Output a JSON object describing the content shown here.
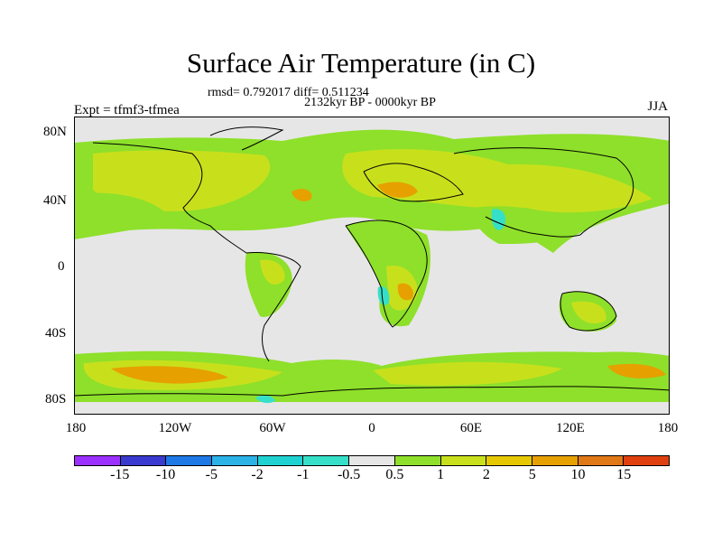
{
  "title": "Surface Air Temperature (in C)",
  "stats": "rmsd= 0.792017 diff= 0.511234",
  "period": "2132kyr BP - 0000kyr BP",
  "experiment": "Expt = tfmf3-tfmea",
  "season": "JJA",
  "lat_ticks": [
    "80N",
    "40N",
    "0",
    "40S",
    "80S"
  ],
  "lon_ticks": [
    "180",
    "120W",
    "60W",
    "0",
    "60E",
    "120E",
    "180"
  ],
  "colorbar": {
    "colors": [
      "#9b30ff",
      "#3a3ad0",
      "#1e78e6",
      "#2bb3e8",
      "#1fd2d2",
      "#36e0c8",
      "#e6e6e6",
      "#8ee02a",
      "#c8e01c",
      "#e6c800",
      "#e6a000",
      "#e07818",
      "#e04010"
    ],
    "labels": [
      "-15",
      "-10",
      "-5",
      "-2",
      "-1",
      "-0.5",
      "0.5",
      "1",
      "2",
      "5",
      "10",
      "15"
    ]
  },
  "fields": {
    "neutral": "#e6e6e6",
    "green": "#8ee02a",
    "yellow_green": "#c8e01c",
    "yellow": "#e6c800",
    "orange": "#e6a000",
    "cyan": "#36e0c8"
  }
}
